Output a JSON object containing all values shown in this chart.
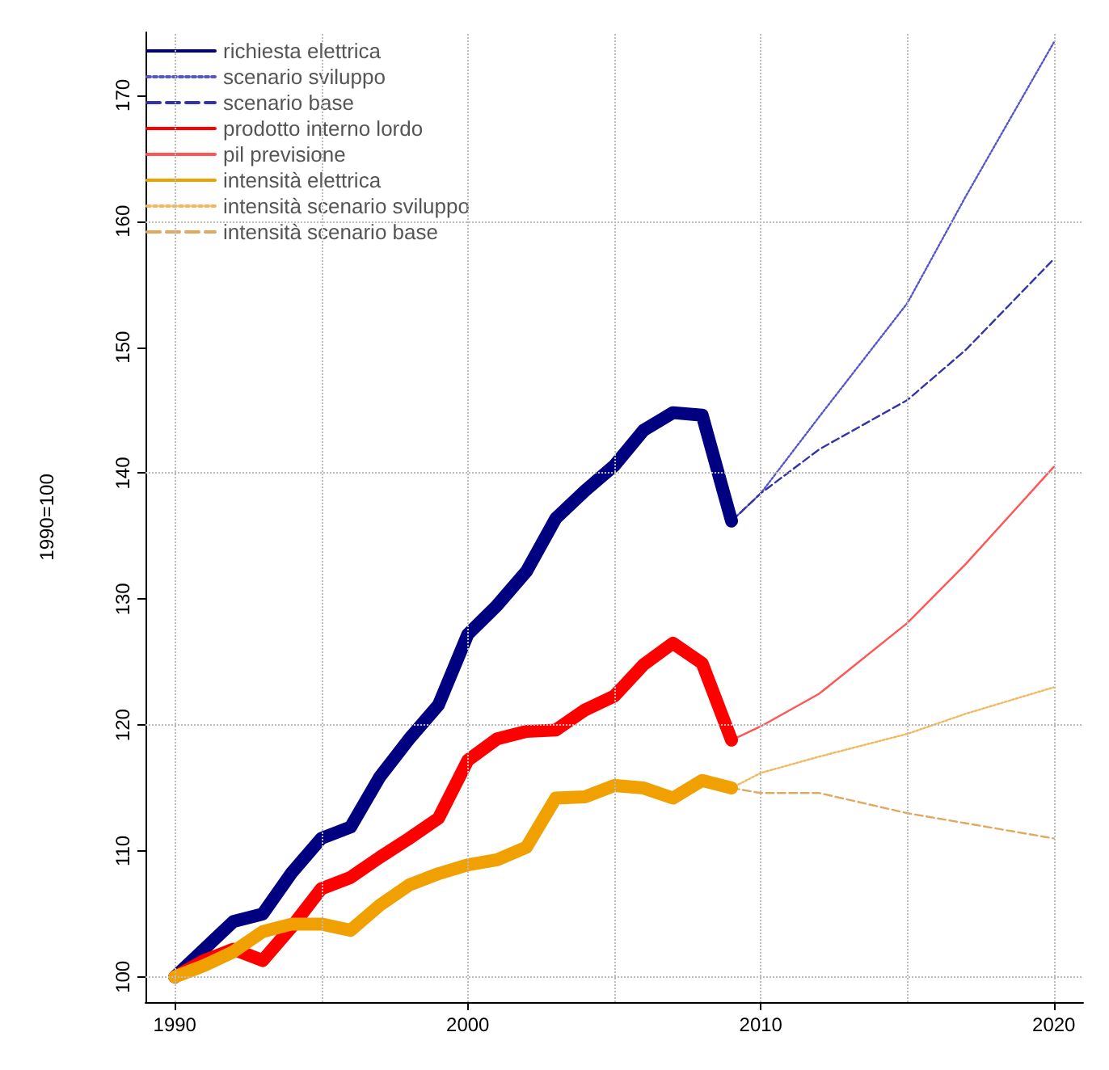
{
  "chart_data": {
    "type": "line",
    "ylabel": "1990=100",
    "xlim": [
      1989,
      2021
    ],
    "xticks": [
      1990,
      2000,
      2010,
      2020
    ],
    "ylim": [
      98,
      175
    ],
    "yticks": [
      100,
      110,
      120,
      130,
      140,
      150,
      160,
      170
    ],
    "legend": "top left",
    "marker": "none",
    "ref_lines": [
      {
        "axis": "y",
        "value": 100,
        "color": "#bbbbbb",
        "line_style": "dotted"
      },
      {
        "axis": "y",
        "value": 120,
        "color": "#bbbbbb",
        "line_style": "dotted"
      },
      {
        "axis": "y",
        "value": 140,
        "color": "#bbbbbb",
        "line_style": "dotted"
      },
      {
        "axis": "y",
        "value": 160,
        "color": "#bbbbbb",
        "line_style": "dotted"
      },
      {
        "axis": "x",
        "value": 1990,
        "color": "#bbbbbb",
        "line_style": "dotted"
      },
      {
        "axis": "x",
        "value": 1995,
        "color": "#bbbbbb",
        "line_style": "dotted"
      },
      {
        "axis": "x",
        "value": 2000,
        "color": "#bbbbbb",
        "line_style": "dotted"
      },
      {
        "axis": "x",
        "value": 2005,
        "color": "#bbbbbb",
        "line_style": "dotted"
      },
      {
        "axis": "x",
        "value": 2010,
        "color": "#bbbbbb",
        "line_style": "dotted"
      },
      {
        "axis": "x",
        "value": 2015,
        "color": "#bbbbbb",
        "line_style": "dotted"
      },
      {
        "axis": "x",
        "value": 2020,
        "color": "#bbbbbb",
        "line_style": "dotted"
      }
    ],
    "series": [
      {
        "name": "richiesta elettrica",
        "color": "#000080",
        "line_style": "solid",
        "x": [
          1990,
          1991,
          1992,
          1993,
          1994,
          1995,
          1996,
          1997,
          1998,
          1999,
          2000,
          2001,
          2002,
          2003,
          2004,
          2005,
          2006,
          2007,
          2008,
          2009
        ],
        "values": [
          100,
          102.2,
          104.4,
          105.0,
          108.3,
          111.0,
          111.9,
          115.9,
          118.9,
          121.6,
          127.2,
          129.5,
          132.2,
          136.4,
          138.6,
          140.6,
          143.4,
          144.8,
          144.6,
          136.2
        ]
      },
      {
        "name": "scenario sviluppo",
        "color": "#5555cc",
        "line_style": "dotted",
        "x": [
          2009,
          2010,
          2012,
          2015,
          2017,
          2020
        ],
        "values": [
          136.2,
          138.4,
          144.5,
          153.5,
          162.0,
          174.2
        ]
      },
      {
        "name": "scenario base",
        "color": "#3333aa",
        "line_style": "dashed",
        "x": [
          2009,
          2010,
          2012,
          2015,
          2017,
          2020
        ],
        "values": [
          136.2,
          138.4,
          141.9,
          145.8,
          149.8,
          157.0
        ]
      },
      {
        "name": "prodotto interno lordo",
        "color": "#ff0000",
        "line_style": "solid",
        "x": [
          1990,
          1991,
          1992,
          1993,
          1994,
          1995,
          1996,
          1997,
          1998,
          1999,
          2000,
          2001,
          2002,
          2003,
          2004,
          2005,
          2006,
          2007,
          2008,
          2009
        ],
        "values": [
          100,
          101.3,
          102.2,
          101.3,
          104.0,
          107.0,
          107.9,
          109.5,
          111.0,
          112.6,
          117.2,
          118.9,
          119.5,
          119.6,
          121.2,
          122.3,
          124.8,
          126.5,
          124.9,
          118.8
        ]
      },
      {
        "name": "pil previsione",
        "color": "#ff5555",
        "line_style": "solid",
        "x": [
          2009,
          2010,
          2012,
          2015,
          2017,
          2020
        ],
        "values": [
          118.8,
          119.9,
          122.5,
          128.1,
          132.8,
          140.5
        ]
      },
      {
        "name": "intensità elettrica",
        "color": "#f0a000",
        "line_style": "solid",
        "x": [
          1990,
          1991,
          1992,
          1993,
          1994,
          1995,
          1996,
          1997,
          1998,
          1999,
          2000,
          2001,
          2002,
          2003,
          2004,
          2005,
          2006,
          2007,
          2008,
          2009
        ],
        "values": [
          100,
          100.9,
          102.0,
          103.6,
          104.2,
          104.2,
          103.7,
          105.7,
          107.3,
          108.2,
          108.9,
          109.3,
          110.3,
          114.2,
          114.3,
          115.2,
          115.0,
          114.2,
          115.6,
          115.0
        ]
      },
      {
        "name": "intensità scenario sviluppo",
        "color": "#f2b860",
        "line_style": "dotted",
        "x": [
          2009,
          2010,
          2012,
          2015,
          2017,
          2020
        ],
        "values": [
          115.0,
          116.2,
          117.5,
          119.3,
          120.9,
          123.0
        ]
      },
      {
        "name": "intensità scenario base",
        "color": "#e0a860",
        "line_style": "dashed",
        "x": [
          2009,
          2010,
          2012,
          2015,
          2017,
          2020
        ],
        "values": [
          115.0,
          114.6,
          114.6,
          113.0,
          112.2,
          111.0
        ]
      }
    ]
  }
}
